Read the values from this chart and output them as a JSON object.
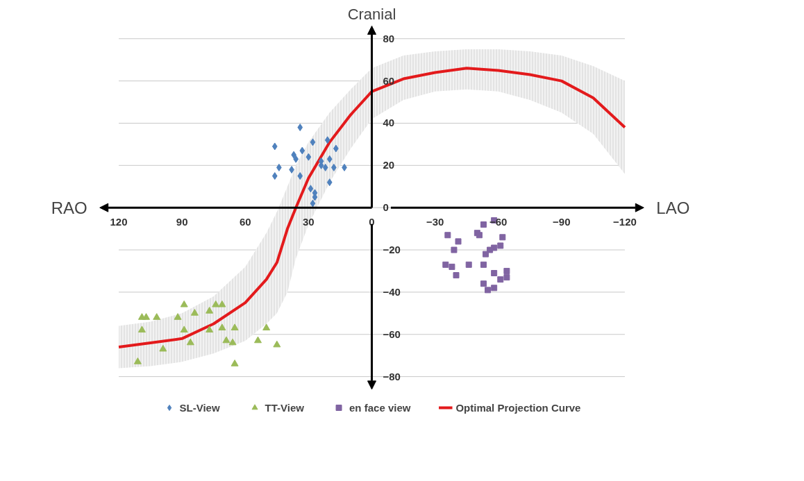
{
  "chart_data": {
    "type": "scatter",
    "ylabel": "Cranial",
    "annotations": [
      "RAO",
      "LAO"
    ],
    "xlim": [
      129,
      -129
    ],
    "ylim": [
      -86,
      86
    ],
    "xticks": [
      120,
      90,
      60,
      30,
      0,
      -30,
      -60,
      -90,
      -120
    ],
    "yticks": [
      -80,
      -60,
      -40,
      -20,
      0,
      20,
      40,
      60,
      80
    ],
    "grid": "y",
    "legend": "bottom",
    "series": [
      {
        "name": "SL-View",
        "marker": "diamond",
        "color": "#4f81bd",
        "x": [
          34,
          46,
          28,
          21,
          17,
          37,
          33,
          36,
          30,
          24,
          24,
          20,
          44,
          38,
          18,
          13,
          46,
          34,
          20,
          29,
          27,
          27,
          28,
          22
        ],
        "values": [
          38,
          29,
          31,
          32,
          28,
          25,
          27,
          23,
          24,
          22,
          20,
          23,
          19,
          18,
          19,
          19,
          15,
          15,
          12,
          9,
          7,
          5,
          2,
          19
        ]
      },
      {
        "name": "TT-View",
        "marker": "triangle",
        "color": "#9bbb59",
        "x": [
          109,
          107,
          102,
          89,
          92,
          84,
          109,
          89,
          99,
          111,
          86,
          77,
          74,
          71,
          77,
          71,
          65,
          69,
          66,
          65,
          54,
          50,
          45
        ],
        "values": [
          -52,
          -52,
          -52,
          -46,
          -52,
          -50,
          -58,
          -58,
          -67,
          -73,
          -64,
          -49,
          -46,
          -46,
          -58,
          -57,
          -57,
          -63,
          -64,
          -74,
          -63,
          -57,
          -65
        ]
      },
      {
        "name": "en face view",
        "marker": "square",
        "color": "#8064a2",
        "x": [
          -36,
          -41,
          -39,
          -35,
          -38,
          -40,
          -46,
          -50,
          -51,
          -53,
          -58,
          -62,
          -61,
          -58,
          -56,
          -54,
          -53,
          -58,
          -61,
          -64,
          -64,
          -53,
          -55,
          -58
        ],
        "values": [
          -13,
          -16,
          -20,
          -27,
          -28,
          -32,
          -27,
          -12,
          -13,
          -8,
          -6,
          -14,
          -18,
          -19,
          -20,
          -22,
          -27,
          -31,
          -34,
          -30,
          -33,
          -36,
          -39,
          -38
        ]
      },
      {
        "name": "Optimal Projection Curve",
        "type": "line",
        "line_style": "solid",
        "color": "#e31a1c",
        "x": [
          120,
          105,
          90,
          75,
          60,
          50,
          45,
          40,
          36,
          30,
          20,
          10,
          0,
          -15,
          -30,
          -45,
          -60,
          -75,
          -90,
          -105,
          -120
        ],
        "values": [
          -66,
          -64,
          -62,
          -55,
          -45,
          -34,
          -26,
          -10,
          0,
          14,
          31,
          44,
          55,
          61,
          64,
          66,
          65,
          63,
          60,
          52,
          38
        ],
        "upper": [
          -56,
          -54,
          -50,
          -42,
          -28,
          -12,
          -2,
          10,
          20,
          31,
          45,
          56,
          66,
          72,
          74,
          75,
          75,
          74,
          72,
          67,
          60
        ],
        "lower": [
          -76,
          -75,
          -73,
          -69,
          -63,
          -55,
          -50,
          -40,
          -24,
          -8,
          12,
          28,
          42,
          51,
          55,
          56,
          55,
          51,
          45,
          35,
          16
        ]
      }
    ]
  }
}
